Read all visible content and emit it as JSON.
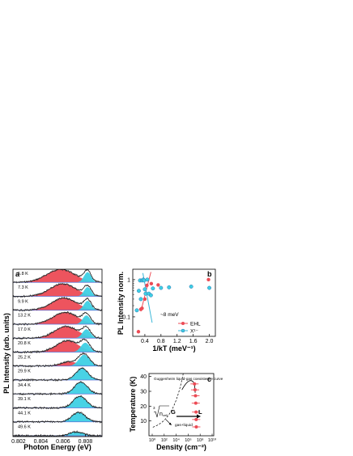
{
  "colors": {
    "ehl": "#ec4b55",
    "x": "#3ed0e4",
    "excitonLine": "#3ab7d8",
    "data": "#3a3a3a",
    "baseline": "#5b6fd8",
    "fit": "#000000"
  },
  "chart_data": [
    {
      "panel": "a",
      "type": "area",
      "xlabel": "Photon Energy (eV)",
      "ylabel": "PL Intensity (arb. units)",
      "xlim": [
        0.8015,
        0.8095
      ],
      "xticks": [
        "0.802",
        "0.804",
        "0.806",
        "0.808"
      ],
      "series": [
        {
          "temp": "5.8 K",
          "ehlAmp": 0.92,
          "ehlCenter": 0.8058,
          "ehlWidth": 0.00125,
          "xAmp": 0.72,
          "xCenter": 0.8082,
          "xWidth": 0.00032
        },
        {
          "temp": "7.3 K",
          "ehlAmp": 0.88,
          "ehlCenter": 0.806,
          "ehlWidth": 0.00115,
          "xAmp": 0.65,
          "xCenter": 0.8082,
          "xWidth": 0.00032
        },
        {
          "temp": "9.9 K",
          "ehlAmp": 0.86,
          "ehlCenter": 0.8061,
          "ehlWidth": 0.00112,
          "xAmp": 0.66,
          "xCenter": 0.8082,
          "xWidth": 0.00033
        },
        {
          "temp": "13.2 K",
          "ehlAmp": 0.84,
          "ehlCenter": 0.8062,
          "ehlWidth": 0.00108,
          "xAmp": 0.62,
          "xCenter": 0.8081,
          "xWidth": 0.00034
        },
        {
          "temp": "17.0 K",
          "ehlAmp": 0.82,
          "ehlCenter": 0.8063,
          "ehlWidth": 0.00105,
          "xAmp": 0.62,
          "xCenter": 0.8081,
          "xWidth": 0.00036
        },
        {
          "temp": "20.8 K",
          "ehlAmp": 0.8,
          "ehlCenter": 0.8064,
          "ehlWidth": 0.001,
          "xAmp": 0.66,
          "xCenter": 0.808,
          "xWidth": 0.0004
        },
        {
          "temp": "25.2 K",
          "ehlAmp": 0.3,
          "ehlCenter": 0.8066,
          "ehlWidth": 0.0008,
          "xAmp": 0.8,
          "xCenter": 0.8079,
          "xWidth": 0.00048
        },
        {
          "temp": "29.9 K",
          "ehlAmp": 0.0,
          "ehlCenter": 0.8066,
          "ehlWidth": 0.0008,
          "xAmp": 0.82,
          "xCenter": 0.8077,
          "xWidth": 0.00055
        },
        {
          "temp": "34.4 K",
          "ehlAmp": 0.0,
          "ehlCenter": 0.8066,
          "ehlWidth": 0.0008,
          "xAmp": 0.84,
          "xCenter": 0.8076,
          "xWidth": 0.00058
        },
        {
          "temp": "39.1 K",
          "ehlAmp": 0.0,
          "ehlCenter": 0.8066,
          "ehlWidth": 0.0008,
          "xAmp": 0.82,
          "xCenter": 0.8075,
          "xWidth": 0.0006
        },
        {
          "temp": "44.1 K",
          "ehlAmp": 0.0,
          "ehlCenter": 0.8066,
          "ehlWidth": 0.0008,
          "xAmp": 0.66,
          "xCenter": 0.8074,
          "xWidth": 0.0006
        },
        {
          "temp": "49.6 K",
          "ehlAmp": 0.0,
          "ehlCenter": 0.8066,
          "ehlWidth": 0.0008,
          "xAmp": 0.28,
          "xCenter": 0.8072,
          "xWidth": 0.0006
        }
      ]
    },
    {
      "panel": "b",
      "type": "scatter",
      "xlabel": "1/kT (meV⁻¹)",
      "ylabel": "PL Intensity norm.",
      "xlim": [
        0.1,
        2.15
      ],
      "ylim": [
        0.03,
        1.9
      ],
      "yscale": "log",
      "xticks": [
        "0.4",
        "0.8",
        "1.2",
        "1.6",
        "2.0"
      ],
      "yticks": [
        "0.1",
        "1"
      ],
      "legend": {
        "position": "bottom-right",
        "entries": [
          "EHL",
          "X¹⁻"
        ]
      },
      "annotation": "~8 meV",
      "series": [
        {
          "name": "EHL",
          "x": [
            0.24,
            0.3,
            0.33,
            0.4,
            0.45,
            0.56,
            0.73,
            1.98
          ],
          "y": [
            0.04,
            0.16,
            0.17,
            0.3,
            0.7,
            0.78,
            0.72,
            1.0
          ]
        },
        {
          "name": "X¹⁻",
          "x": [
            0.2,
            0.25,
            0.28,
            0.3,
            0.33,
            0.36,
            0.38,
            0.4,
            0.42,
            0.46,
            0.5,
            0.55,
            0.6,
            0.8,
            1.0,
            1.55,
            2.0
          ],
          "y": [
            0.15,
            0.5,
            0.95,
            0.3,
            0.95,
            1.0,
            0.95,
            0.55,
            0.42,
            1.0,
            0.42,
            0.38,
            0.58,
            0.6,
            0.62,
            0.65,
            0.6
          ]
        }
      ]
    },
    {
      "panel": "c",
      "type": "line",
      "xlabel": "Density (cm⁻²)",
      "ylabel": "Temperature (K)",
      "xlim": [
        1,
        100000
      ],
      "ylim": [
        0,
        42
      ],
      "xscale": "log",
      "yticks": [
        "10",
        "20",
        "30",
        "40"
      ],
      "xticks": [
        "10⁰",
        "10²",
        "10⁴",
        "10⁶",
        "10⁸",
        "10¹⁰"
      ],
      "annotations": [
        "Guggenheim liquid-gas coexistence curve",
        "G",
        "L",
        "gas+liquid"
      ],
      "formula": "n",
      "formulaIndex": "3",
      "formulaSub": "cell",
      "points": {
        "T": [
          35,
          31,
          27,
          22,
          16,
          11,
          6
        ],
        "n": [
          3300,
          3600,
          3900,
          4100,
          4300,
          4400,
          4500
        ]
      }
    }
  ]
}
